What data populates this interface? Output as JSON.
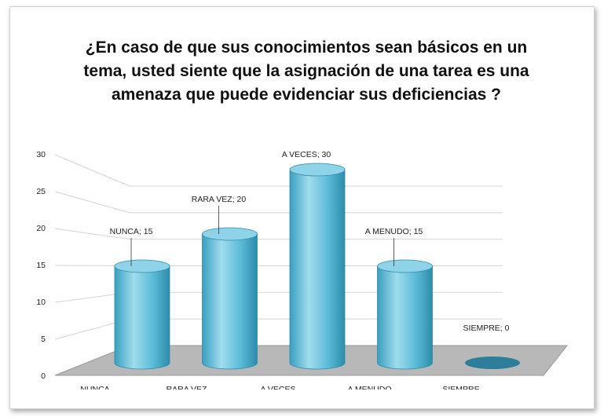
{
  "chart_data": {
    "type": "bar3d",
    "title": "¿En caso de que sus conocimientos sean básicos en un tema, usted siente que la asignación de una tarea es una amenaza que puede evidenciar sus deficiencias ?",
    "categories": [
      "NUNCA",
      "RARA VEZ",
      "A VECES",
      "A MENUDO",
      "SIEMPRE"
    ],
    "values": [
      15,
      20,
      30,
      15,
      0
    ],
    "value_labels": [
      "NUNCA; 15",
      "RARA VEZ; 20",
      "A VECES; 30",
      "A MENUDO; 15",
      "SIEMPRE; 0"
    ],
    "color": "#4fb3d0",
    "ylim": [
      0,
      30
    ],
    "yticks": [
      0,
      5,
      10,
      15,
      20,
      25,
      30
    ],
    "grid": true
  }
}
